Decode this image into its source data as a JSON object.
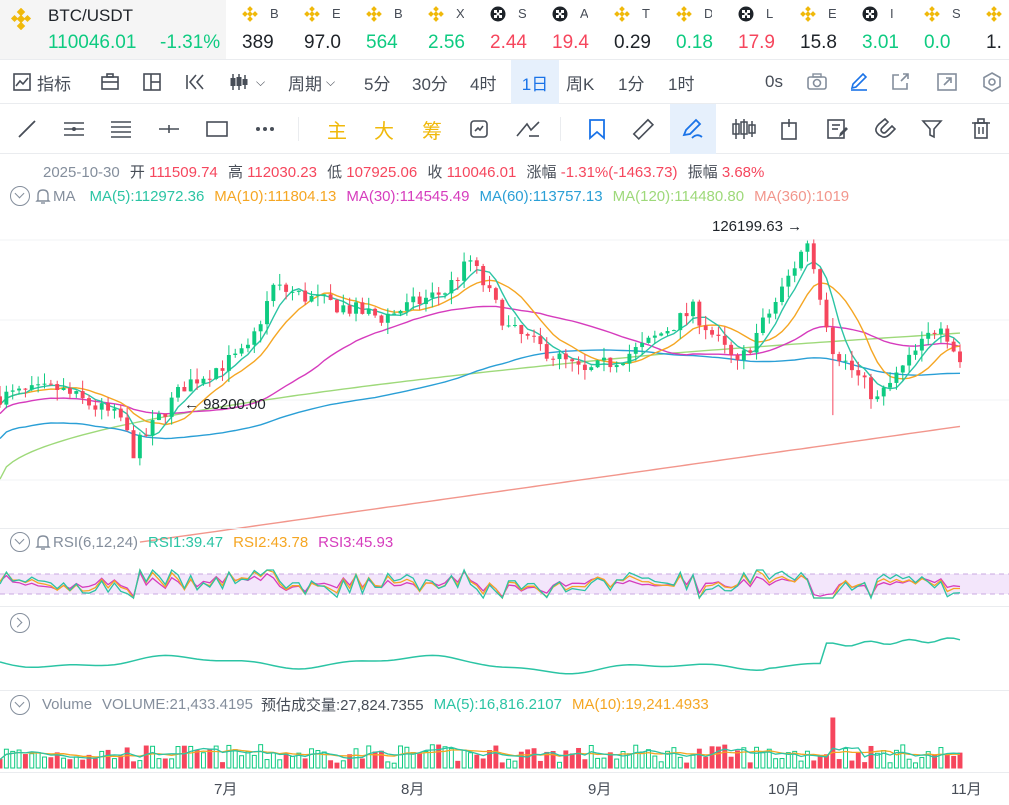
{
  "main_ticker": {
    "symbol": "BTC/USDT",
    "price": "110046.01",
    "change": "-1.31%"
  },
  "tickers": [
    {
      "name": "B",
      "value": "389",
      "color": "#1e2329",
      "icon": "binance-icon"
    },
    {
      "name": "E",
      "value": "97.0",
      "color": "#1e2329",
      "icon": "binance-icon"
    },
    {
      "name": "B",
      "value": "564",
      "color": "#0ecb81",
      "icon": "binance-icon"
    },
    {
      "name": "X",
      "value": "2.56",
      "color": "#0ecb81",
      "icon": "binance-icon"
    },
    {
      "name": "S",
      "value": "2.44",
      "color": "#f6465d",
      "icon": "checker-icon"
    },
    {
      "name": "A",
      "value": "19.4",
      "color": "#f6465d",
      "icon": "checker-icon"
    },
    {
      "name": "T",
      "value": "0.29",
      "color": "#1e2329",
      "icon": "binance-icon"
    },
    {
      "name": "D",
      "value": "0.18",
      "color": "#0ecb81",
      "icon": "binance-icon"
    },
    {
      "name": "L",
      "value": "17.9",
      "color": "#f6465d",
      "icon": "checker-icon"
    },
    {
      "name": "E",
      "value": "15.8",
      "color": "#1e2329",
      "icon": "binance-icon"
    },
    {
      "name": "I",
      "value": "3.01",
      "color": "#0ecb81",
      "icon": "checker-icon"
    },
    {
      "name": "S",
      "value": "0.0",
      "color": "#0ecb81",
      "icon": "binance-icon"
    },
    {
      "name": "",
      "value": "1.",
      "color": "#1e2329",
      "icon": "binance-icon"
    }
  ],
  "toolbar": {
    "indicators": "指标",
    "period": "周期",
    "intervals": [
      "5分",
      "30分",
      "4时",
      "1日",
      "周K",
      "1分",
      "1时"
    ],
    "active_interval": "1日",
    "countdown": "0s"
  },
  "drawing_tools": {
    "main": "主",
    "big": "大",
    "chip": "筹"
  },
  "ohlc": {
    "date": "2025-10-30",
    "open_label": "开",
    "open": "111509.74",
    "high_label": "高",
    "high": "112030.23",
    "low_label": "低",
    "low": "107925.06",
    "close_label": "收",
    "close": "110046.01",
    "change_label": "涨幅",
    "change": "-1.31%(-1463.73)",
    "amplitude_label": "振幅",
    "amplitude": "3.68%"
  },
  "ma_legend": {
    "name": "MA",
    "items": [
      {
        "label": "MA(5):112972.36",
        "color": "#2bc4a4"
      },
      {
        "label": "MA(10):111804.13",
        "color": "#f5a623"
      },
      {
        "label": "MA(30):114545.49",
        "color": "#d63cbd"
      },
      {
        "label": "MA(60):113757.13",
        "color": "#2a9fd6"
      },
      {
        "label": "MA(120):114480.80",
        "color": "#9ed97a"
      },
      {
        "label": "MA(360):1019",
        "color": "#f2968c"
      }
    ]
  },
  "annotations": {
    "high": "126199.63",
    "low": "98200.00"
  },
  "rsi_legend": {
    "name": "RSI(6,12,24)",
    "items": [
      {
        "label": "RSI1:39.47",
        "color": "#2bc4a4"
      },
      {
        "label": "RSI2:43.78",
        "color": "#f5a623"
      },
      {
        "label": "RSI3:45.93",
        "color": "#d63cbd"
      }
    ]
  },
  "volume_legend": {
    "name": "Volume",
    "volume": "VOLUME:21,433.4195",
    "estimate": "预估成交量:27,824.7355",
    "items": [
      {
        "label": "MA(5):16,816.2107",
        "color": "#2bc4a4"
      },
      {
        "label": "MA(10):19,241.4933",
        "color": "#f5a623"
      }
    ]
  },
  "x_axis": [
    "7月",
    "8月",
    "9月",
    "10月",
    "11月"
  ],
  "chart_data": {
    "type": "candlestick",
    "x_start": "2025-06-01",
    "x_end": "2025-10-30",
    "price_points": [
      [
        "06-01",
        105500
      ],
      [
        "06-10",
        106500
      ],
      [
        "06-20",
        102500
      ],
      [
        "06-22",
        98200
      ],
      [
        "06-30",
        107000
      ],
      [
        "07-10",
        111500
      ],
      [
        "07-14",
        120000
      ],
      [
        "07-20",
        118500
      ],
      [
        "07-31",
        116000
      ],
      [
        "08-10",
        119500
      ],
      [
        "08-14",
        123500
      ],
      [
        "08-20",
        114500
      ],
      [
        "09-01",
        108500
      ],
      [
        "09-10",
        112000
      ],
      [
        "09-18",
        117000
      ],
      [
        "09-25",
        109500
      ],
      [
        "10-01",
        118000
      ],
      [
        "10-06",
        126199.63
      ],
      [
        "10-10",
        112000
      ],
      [
        "10-17",
        105000
      ],
      [
        "10-27",
        115500
      ],
      [
        "10-30",
        110046.01
      ]
    ],
    "rsi_last": [
      39.47,
      43.78,
      45.93
    ],
    "volume_last": 21433.4195
  }
}
